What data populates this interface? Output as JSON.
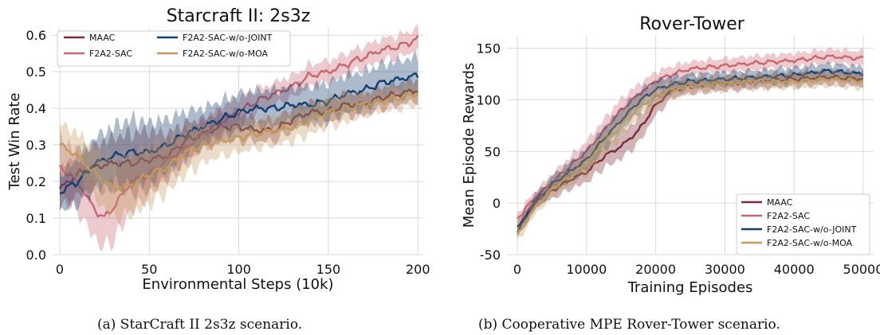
{
  "captions": [
    "(a) StarCraft II 2s3z scenario.",
    "(b) Cooperative MPE Rover-Tower scenario."
  ],
  "colors": {
    "MAAC": "#7b2c35",
    "F2A2-SAC": "#c9676f",
    "F2A2-SAC-w/o-JOINT": "#13406f",
    "F2A2-SAC-w/o-MOA": "#c29a5e"
  },
  "chart_data": [
    {
      "type": "line",
      "title": "Starcraft II: 2s3z",
      "xlabel": "Environmental Steps (10k)",
      "ylabel": "Test Win Rate",
      "xlim": [
        -4,
        203
      ],
      "ylim": [
        0.0,
        0.62
      ],
      "xticks": [
        0,
        50,
        100,
        150,
        200
      ],
      "yticks": [
        0.0,
        0.1,
        0.2,
        0.3,
        0.4,
        0.5,
        0.6
      ],
      "grid": true,
      "legend": "top-left, two columns",
      "legend_entries": [
        "MAAC",
        "F2A2-SAC",
        "F2A2-SAC-w/o-JOINT",
        "F2A2-SAC-w/o-MOA"
      ],
      "series": [
        {
          "name": "MAAC",
          "x": [
            0,
            10,
            20,
            30,
            40,
            50,
            60,
            70,
            80,
            90,
            100,
            110,
            120,
            130,
            140,
            150,
            160,
            170,
            180,
            190,
            200
          ],
          "y": [
            0.18,
            0.22,
            0.24,
            0.25,
            0.25,
            0.26,
            0.27,
            0.31,
            0.33,
            0.35,
            0.35,
            0.34,
            0.34,
            0.37,
            0.39,
            0.39,
            0.41,
            0.41,
            0.43,
            0.44,
            0.45
          ],
          "band": [
            0.05,
            0.06,
            0.06,
            0.07,
            0.08,
            0.08,
            0.06,
            0.05,
            0.04,
            0.04,
            0.04,
            0.03,
            0.03,
            0.03,
            0.03,
            0.03,
            0.03,
            0.03,
            0.03,
            0.03,
            0.03
          ]
        },
        {
          "name": "F2A2-SAC",
          "x": [
            0,
            10,
            20,
            25,
            30,
            40,
            50,
            60,
            70,
            80,
            90,
            100,
            110,
            120,
            130,
            140,
            150,
            160,
            170,
            180,
            190,
            200
          ],
          "y": [
            0.24,
            0.2,
            0.12,
            0.1,
            0.13,
            0.2,
            0.22,
            0.26,
            0.29,
            0.33,
            0.36,
            0.39,
            0.42,
            0.44,
            0.46,
            0.49,
            0.5,
            0.52,
            0.54,
            0.56,
            0.57,
            0.59
          ],
          "band": [
            0.08,
            0.08,
            0.08,
            0.08,
            0.09,
            0.08,
            0.06,
            0.05,
            0.05,
            0.04,
            0.04,
            0.04,
            0.03,
            0.03,
            0.03,
            0.03,
            0.03,
            0.03,
            0.03,
            0.03,
            0.03,
            0.03
          ]
        },
        {
          "name": "F2A2-SAC-w/o-JOINT",
          "x": [
            0,
            10,
            20,
            30,
            40,
            50,
            60,
            70,
            80,
            90,
            100,
            110,
            120,
            130,
            140,
            150,
            160,
            170,
            180,
            190,
            200
          ],
          "y": [
            0.17,
            0.2,
            0.25,
            0.27,
            0.28,
            0.28,
            0.3,
            0.33,
            0.35,
            0.37,
            0.39,
            0.4,
            0.4,
            0.41,
            0.41,
            0.42,
            0.44,
            0.45,
            0.47,
            0.48,
            0.49
          ],
          "band": [
            0.05,
            0.06,
            0.07,
            0.08,
            0.09,
            0.08,
            0.07,
            0.06,
            0.05,
            0.05,
            0.05,
            0.05,
            0.05,
            0.05,
            0.05,
            0.05,
            0.05,
            0.05,
            0.05,
            0.05,
            0.05
          ]
        },
        {
          "name": "F2A2-SAC-w/o-MOA",
          "x": [
            0,
            10,
            20,
            30,
            40,
            50,
            60,
            70,
            80,
            90,
            100,
            110,
            120,
            130,
            140,
            150,
            160,
            170,
            180,
            190,
            200
          ],
          "y": [
            0.3,
            0.27,
            0.22,
            0.18,
            0.19,
            0.22,
            0.24,
            0.28,
            0.3,
            0.31,
            0.32,
            0.33,
            0.34,
            0.35,
            0.37,
            0.39,
            0.4,
            0.41,
            0.42,
            0.43,
            0.44
          ],
          "band": [
            0.06,
            0.06,
            0.07,
            0.08,
            0.08,
            0.08,
            0.07,
            0.06,
            0.05,
            0.04,
            0.04,
            0.04,
            0.04,
            0.04,
            0.04,
            0.04,
            0.04,
            0.03,
            0.03,
            0.03,
            0.03
          ]
        }
      ]
    },
    {
      "type": "line",
      "title": "Rover-Tower",
      "xlabel": "Training Episodes",
      "ylabel": "Mean Episode Rewards",
      "xlim": [
        -1500,
        51500
      ],
      "ylim": [
        -50,
        162
      ],
      "xticks": [
        0,
        10000,
        20000,
        30000,
        40000,
        50000
      ],
      "yticks": [
        -50,
        0,
        50,
        100,
        150
      ],
      "grid": true,
      "legend": "bottom-right",
      "legend_entries": [
        "MAAC",
        "F2A2-SAC",
        "F2A2-SAC-w/o-JOINT",
        "F2A2-SAC-w/o-MOA"
      ],
      "series": [
        {
          "name": "MAAC",
          "x": [
            0,
            2500,
            5000,
            7500,
            10000,
            12500,
            15000,
            17500,
            20000,
            22500,
            25000,
            30000,
            35000,
            40000,
            45000,
            50000
          ],
          "y": [
            -25,
            2,
            12,
            22,
            30,
            45,
            55,
            70,
            95,
            110,
            113,
            116,
            118,
            120,
            122,
            120
          ],
          "band": [
            5,
            6,
            8,
            9,
            10,
            11,
            12,
            12,
            10,
            8,
            7,
            7,
            7,
            7,
            7,
            7
          ]
        },
        {
          "name": "F2A2-SAC",
          "x": [
            0,
            2500,
            5000,
            7500,
            10000,
            12500,
            15000,
            17500,
            20000,
            22500,
            25000,
            30000,
            35000,
            40000,
            45000,
            50000
          ],
          "y": [
            -15,
            5,
            20,
            35,
            50,
            70,
            90,
            105,
            118,
            125,
            130,
            133,
            136,
            138,
            142,
            140
          ],
          "band": [
            5,
            6,
            8,
            9,
            10,
            11,
            11,
            10,
            9,
            8,
            7,
            7,
            7,
            7,
            7,
            7
          ]
        },
        {
          "name": "F2A2-SAC-w/o-JOINT",
          "x": [
            0,
            2500,
            5000,
            7500,
            10000,
            12500,
            15000,
            17500,
            20000,
            22500,
            25000,
            30000,
            35000,
            40000,
            45000,
            50000
          ],
          "y": [
            -28,
            0,
            18,
            30,
            42,
            62,
            80,
            98,
            110,
            115,
            118,
            120,
            122,
            124,
            128,
            125
          ],
          "band": [
            5,
            6,
            8,
            9,
            10,
            11,
            11,
            10,
            9,
            8,
            7,
            7,
            7,
            7,
            7,
            7
          ]
        },
        {
          "name": "F2A2-SAC-w/o-MOA",
          "x": [
            0,
            2500,
            5000,
            7500,
            10000,
            12500,
            15000,
            17500,
            20000,
            22500,
            25000,
            30000,
            35000,
            40000,
            45000,
            50000
          ],
          "y": [
            -32,
            -5,
            14,
            25,
            38,
            58,
            75,
            92,
            104,
            110,
            113,
            116,
            118,
            118,
            120,
            118
          ],
          "band": [
            6,
            7,
            8,
            9,
            10,
            11,
            11,
            10,
            9,
            8,
            7,
            7,
            7,
            7,
            7,
            7
          ]
        }
      ]
    }
  ]
}
